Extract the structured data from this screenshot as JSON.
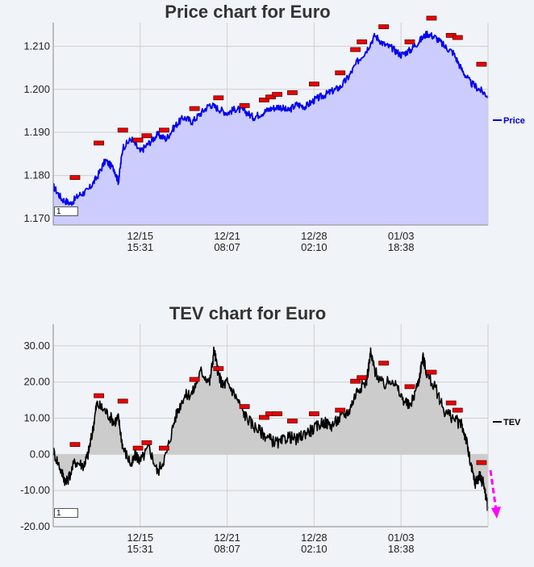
{
  "chart_data": [
    {
      "type": "area",
      "title": "Price chart for Euro",
      "xlabel": "",
      "ylabel": "",
      "yticks": [
        "1.170",
        "1.180",
        "1.190",
        "1.200",
        "1.210"
      ],
      "ylim": [
        1.1685,
        1.2155
      ],
      "xticks": [
        {
          "pos": 0.2,
          "date": "12/15",
          "time": "15:31"
        },
        {
          "pos": 0.4,
          "date": "12/21",
          "time": "08:07"
        },
        {
          "pos": 0.6,
          "date": "12/28",
          "time": "02:10"
        },
        {
          "pos": 0.8,
          "date": "01/03",
          "time": "18:38"
        }
      ],
      "xlim": [
        0,
        1
      ],
      "x": [
        0.0,
        0.02,
        0.04,
        0.06,
        0.08,
        0.1,
        0.12,
        0.14,
        0.15,
        0.16,
        0.18,
        0.2,
        0.22,
        0.24,
        0.26,
        0.28,
        0.3,
        0.32,
        0.34,
        0.36,
        0.38,
        0.4,
        0.42,
        0.44,
        0.46,
        0.48,
        0.5,
        0.52,
        0.54,
        0.56,
        0.58,
        0.6,
        0.62,
        0.64,
        0.66,
        0.68,
        0.7,
        0.72,
        0.74,
        0.76,
        0.78,
        0.8,
        0.82,
        0.84,
        0.86,
        0.88,
        0.9,
        0.92,
        0.94,
        0.96,
        0.98,
        1.0
      ],
      "series": [
        {
          "name": "Price",
          "values": [
            1.1775,
            1.1745,
            1.1735,
            1.1755,
            1.1765,
            1.1795,
            1.1835,
            1.1815,
            1.1785,
            1.1865,
            1.1885,
            1.1855,
            1.1875,
            1.1895,
            1.1885,
            1.1915,
            1.1935,
            1.1925,
            1.1945,
            1.1965,
            1.1955,
            1.1945,
            1.1955,
            1.195,
            1.1935,
            1.1945,
            1.1955,
            1.196,
            1.195,
            1.1965,
            1.196,
            1.1975,
            1.1985,
            1.1995,
            1.2005,
            1.203,
            1.2065,
            1.209,
            1.2125,
            1.2105,
            1.2095,
            1.208,
            1.209,
            1.211,
            1.213,
            1.212,
            1.21,
            1.2085,
            1.2045,
            1.2015,
            1.2,
            1.1985
          ]
        }
      ],
      "legend": "right",
      "colors": {
        "line": "#0000ee",
        "fill": "#ccccff"
      },
      "range_label": "1",
      "event_markers": [
        {
          "x": 0.05,
          "y": 1.1785
        },
        {
          "x": 0.105,
          "y": 1.1865
        },
        {
          "x": 0.16,
          "y": 1.1895
        },
        {
          "x": 0.195,
          "y": 1.1872
        },
        {
          "x": 0.215,
          "y": 1.1882
        },
        {
          "x": 0.255,
          "y": 1.1895
        },
        {
          "x": 0.325,
          "y": 1.1945
        },
        {
          "x": 0.38,
          "y": 1.197
        },
        {
          "x": 0.44,
          "y": 1.1952
        },
        {
          "x": 0.485,
          "y": 1.1965
        },
        {
          "x": 0.5,
          "y": 1.1972
        },
        {
          "x": 0.515,
          "y": 1.1978
        },
        {
          "x": 0.55,
          "y": 1.1982
        },
        {
          "x": 0.6,
          "y": 1.2002
        },
        {
          "x": 0.66,
          "y": 1.2028
        },
        {
          "x": 0.695,
          "y": 1.2082
        },
        {
          "x": 0.71,
          "y": 1.21
        },
        {
          "x": 0.76,
          "y": 1.2135
        },
        {
          "x": 0.82,
          "y": 1.21
        },
        {
          "x": 0.87,
          "y": 1.2155
        },
        {
          "x": 0.915,
          "y": 1.2115
        },
        {
          "x": 0.93,
          "y": 1.211
        },
        {
          "x": 0.985,
          "y": 1.2048
        }
      ]
    },
    {
      "type": "area",
      "title": "TEV chart for Euro",
      "xlabel": "",
      "ylabel": "",
      "yticks": [
        "-20.00",
        "-10.00",
        "0.00",
        "10.00",
        "20.00",
        "30.00"
      ],
      "ylim": [
        -20,
        36
      ],
      "xticks": [
        {
          "pos": 0.2,
          "date": "12/15",
          "time": "15:31"
        },
        {
          "pos": 0.4,
          "date": "12/21",
          "time": "08:07"
        },
        {
          "pos": 0.6,
          "date": "12/28",
          "time": "02:10"
        },
        {
          "pos": 0.8,
          "date": "01/03",
          "time": "18:38"
        }
      ],
      "xlim": [
        0,
        1
      ],
      "x": [
        0.0,
        0.02,
        0.03,
        0.05,
        0.07,
        0.08,
        0.09,
        0.1,
        0.12,
        0.14,
        0.15,
        0.16,
        0.18,
        0.19,
        0.2,
        0.22,
        0.24,
        0.26,
        0.28,
        0.3,
        0.32,
        0.34,
        0.36,
        0.37,
        0.38,
        0.39,
        0.4,
        0.42,
        0.44,
        0.46,
        0.48,
        0.5,
        0.52,
        0.54,
        0.56,
        0.58,
        0.6,
        0.62,
        0.64,
        0.66,
        0.68,
        0.7,
        0.72,
        0.73,
        0.74,
        0.76,
        0.78,
        0.8,
        0.82,
        0.84,
        0.85,
        0.86,
        0.88,
        0.9,
        0.92,
        0.94,
        0.95,
        0.96,
        0.97,
        0.98,
        0.99,
        1.0
      ],
      "series": [
        {
          "name": "TEV",
          "values": [
            1,
            -5,
            -8,
            -2,
            -3,
            0,
            6,
            14,
            12,
            9,
            10,
            2,
            -3,
            0,
            -2,
            2,
            -5,
            0,
            10,
            16,
            17,
            23,
            20,
            29,
            22,
            19,
            20,
            16,
            11,
            8,
            6,
            4,
            3,
            5,
            4,
            6,
            7,
            9,
            8,
            10,
            12,
            18,
            20,
            28,
            23,
            19,
            21,
            16,
            13,
            20,
            27,
            22,
            18,
            12,
            10,
            8,
            4,
            -3,
            -8,
            -6,
            -8,
            -15
          ]
        }
      ],
      "legend": "right",
      "colors": {
        "line": "#000000",
        "fill": "#cccccc",
        "arrow": "#ff00ff"
      },
      "range_label": "1",
      "event_markers": [
        {
          "x": 0.05,
          "y": 1.5
        },
        {
          "x": 0.105,
          "y": 15
        },
        {
          "x": 0.16,
          "y": 13.5
        },
        {
          "x": 0.195,
          "y": 0.5
        },
        {
          "x": 0.215,
          "y": 2
        },
        {
          "x": 0.255,
          "y": 0.5
        },
        {
          "x": 0.325,
          "y": 19.5
        },
        {
          "x": 0.38,
          "y": 22.5
        },
        {
          "x": 0.44,
          "y": 12
        },
        {
          "x": 0.485,
          "y": 9
        },
        {
          "x": 0.5,
          "y": 10
        },
        {
          "x": 0.515,
          "y": 10
        },
        {
          "x": 0.55,
          "y": 8
        },
        {
          "x": 0.6,
          "y": 10
        },
        {
          "x": 0.66,
          "y": 11
        },
        {
          "x": 0.695,
          "y": 19
        },
        {
          "x": 0.71,
          "y": 20
        },
        {
          "x": 0.76,
          "y": 24
        },
        {
          "x": 0.82,
          "y": 17.5
        },
        {
          "x": 0.87,
          "y": 21.5
        },
        {
          "x": 0.915,
          "y": 13
        },
        {
          "x": 0.93,
          "y": 11
        },
        {
          "x": 0.985,
          "y": -3.5
        }
      ]
    }
  ]
}
